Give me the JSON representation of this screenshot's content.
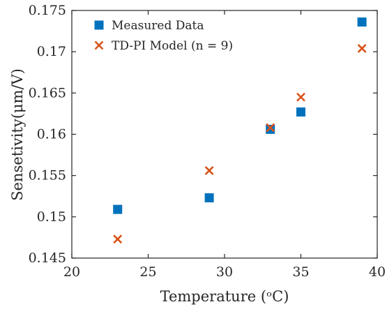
{
  "chart_data": {
    "type": "scatter",
    "title": "",
    "xlabel": "Temperature (ᵒC)",
    "ylabel": "Sensetivity(μm/V)",
    "xlim": [
      20,
      40
    ],
    "ylim": [
      0.145,
      0.175
    ],
    "xticks": [
      20,
      25,
      30,
      35,
      40
    ],
    "yticks": [
      0.145,
      0.15,
      0.155,
      0.16,
      0.165,
      0.17,
      0.175
    ],
    "xtick_labels": [
      "20",
      "25",
      "30",
      "35",
      "40"
    ],
    "ytick_labels": [
      "0.145",
      "0.15",
      "0.155",
      "0.16",
      "0.165",
      "0.17",
      "0.175"
    ],
    "grid": false,
    "legend_position": "top-left",
    "series": [
      {
        "name": "Measured Data",
        "marker": "square",
        "color": "#0072BD",
        "x": [
          23,
          29,
          33,
          35,
          39
        ],
        "y": [
          0.1509,
          0.1523,
          0.1606,
          0.1627,
          0.1736
        ]
      },
      {
        "name": "TD-PI Model (n = 9)",
        "marker": "x",
        "color": "#D95319",
        "x": [
          23,
          29,
          33,
          35,
          39
        ],
        "y": [
          0.1473,
          0.1556,
          0.1608,
          0.1645,
          0.1704
        ]
      }
    ]
  }
}
